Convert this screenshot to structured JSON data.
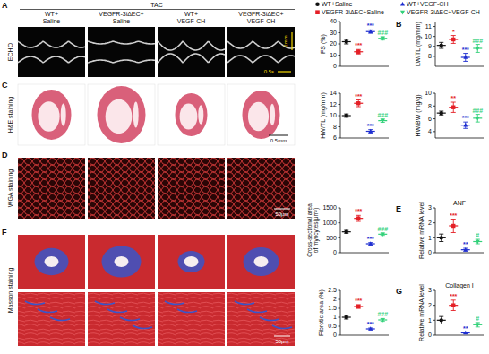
{
  "chart_data": [
    {
      "type": "dot",
      "y_label": "FS (%)",
      "categories": [
        null,
        null,
        null,
        null
      ],
      "values": [
        22,
        13,
        31,
        25
      ],
      "errors": [
        2,
        2,
        1.5,
        1.5
      ],
      "colors": [
        "#111111",
        "#e41f26",
        "#1f2fd0",
        "#33d17a"
      ],
      "annotations": [
        null,
        "***",
        "***",
        "###"
      ],
      "ylim": [
        0,
        40
      ],
      "yticks": [
        0,
        10,
        20,
        30,
        40
      ],
      "tick_labels": "y"
    },
    {
      "type": "dot",
      "y_label": "LW/TL (mg/mm)",
      "categories": [
        null,
        null,
        null,
        null
      ],
      "values": [
        9.1,
        9.7,
        7.9,
        8.8
      ],
      "errors": [
        0.3,
        0.4,
        0.4,
        0.4
      ],
      "colors": [
        "#111111",
        "#e41f26",
        "#1f2fd0",
        "#33d17a"
      ],
      "annotations": [
        null,
        "*",
        "***",
        "###"
      ],
      "ylim": [
        7,
        11.5
      ],
      "yticks": [
        8,
        9,
        10,
        11
      ],
      "tick_labels": "y"
    },
    {
      "type": "dot",
      "y_label": "HW/TL (mg/mm)",
      "categories": [
        null,
        null,
        null,
        null
      ],
      "values": [
        10.0,
        12.2,
        7.2,
        9.1
      ],
      "errors": [
        0.3,
        0.6,
        0.3,
        0.3
      ],
      "colors": [
        "#111111",
        "#e41f26",
        "#1f2fd0",
        "#33d17a"
      ],
      "annotations": [
        null,
        "***",
        "***",
        "###"
      ],
      "ylim": [
        6,
        14
      ],
      "yticks": [
        6,
        8,
        10,
        12,
        14
      ],
      "tick_labels": "y"
    },
    {
      "type": "dot",
      "y_label": "HW/BW (mg/g)",
      "categories": [
        null,
        null,
        null,
        null
      ],
      "values": [
        6.9,
        7.8,
        5.0,
        6.1
      ],
      "errors": [
        0.3,
        0.8,
        0.5,
        0.6
      ],
      "colors": [
        "#111111",
        "#e41f26",
        "#1f2fd0",
        "#33d17a"
      ],
      "annotations": [
        null,
        "**",
        "***",
        "###"
      ],
      "ylim": [
        3,
        10
      ],
      "yticks": [
        4,
        6,
        8,
        10
      ],
      "tick_labels": "y"
    },
    {
      "type": "dot",
      "y_label": "Cross-sectional area of myocytes(μm²)",
      "categories": [
        null,
        null,
        null,
        null
      ],
      "values": [
        700,
        1150,
        300,
        620
      ],
      "errors": [
        50,
        100,
        40,
        40
      ],
      "colors": [
        "#111111",
        "#e41f26",
        "#1f2fd0",
        "#33d17a"
      ],
      "annotations": [
        null,
        "***",
        "***",
        "###"
      ],
      "ylim": [
        0,
        1500
      ],
      "yticks": [
        0,
        500,
        1000,
        1500
      ],
      "tick_labels": "y"
    },
    {
      "type": "dot",
      "title": "ANF",
      "y_label": "Relative mRNA level",
      "categories": [
        null,
        null,
        null,
        null
      ],
      "values": [
        1.0,
        1.8,
        0.2,
        0.75
      ],
      "errors": [
        0.25,
        0.45,
        0.1,
        0.15
      ],
      "colors": [
        "#111111",
        "#e41f26",
        "#1f2fd0",
        "#33d17a"
      ],
      "annotations": [
        null,
        "***",
        "**",
        "#"
      ],
      "ylim": [
        0,
        3
      ],
      "yticks": [
        0,
        1,
        2,
        3
      ],
      "tick_labels": "y"
    },
    {
      "type": "dot",
      "y_label": "Fibrotic area (%)",
      "categories": [
        null,
        null,
        null,
        null
      ],
      "values": [
        1.0,
        1.6,
        0.35,
        0.85
      ],
      "errors": [
        0.1,
        0.1,
        0.05,
        0.08
      ],
      "colors": [
        "#111111",
        "#e41f26",
        "#1f2fd0",
        "#33d17a"
      ],
      "annotations": [
        null,
        "***",
        "***",
        "###"
      ],
      "ylim": [
        0,
        2.5
      ],
      "yticks": [
        0,
        0.5,
        1,
        1.5,
        2,
        2.5
      ],
      "tick_labels": "y"
    },
    {
      "type": "dot",
      "title": "Collagen I",
      "y_label": "Relative mRNA level",
      "categories": [
        null,
        null,
        null,
        null
      ],
      "values": [
        1.0,
        2.0,
        0.15,
        0.7
      ],
      "errors": [
        0.25,
        0.35,
        0.05,
        0.15
      ],
      "colors": [
        "#111111",
        "#e41f26",
        "#1f2fd0",
        "#33d17a"
      ],
      "annotations": [
        null,
        "***",
        "**",
        "#"
      ],
      "ylim": [
        0,
        3
      ],
      "yticks": [
        0,
        1,
        2,
        3
      ],
      "tick_labels": "y"
    }
  ],
  "figure": {
    "letters": [
      "A",
      "B",
      "C",
      "D",
      "E",
      "F",
      "G"
    ],
    "condition": "TAC",
    "rows": [
      "ECHO",
      "H&E staining",
      "WGA staining",
      "Masson staining"
    ],
    "scale_bars": [
      "2mm",
      "0.5s",
      "0.5mm",
      "50μm",
      "50μm"
    ],
    "legend_entries": [
      {
        "name": "WT+Saline",
        "color": "#111111",
        "marker": "circle"
      },
      {
        "name": "VEGFR-3iΔEC+Saline",
        "color": "#e41f26",
        "marker": "square"
      },
      {
        "name": "WT+VEGF-CH",
        "color": "#1f2fd0",
        "marker": "triangle"
      },
      {
        "name": "VEGFR-3iΔEC+VEGF-CH",
        "color": "#33d17a",
        "marker": "triangle-down"
      }
    ]
  }
}
